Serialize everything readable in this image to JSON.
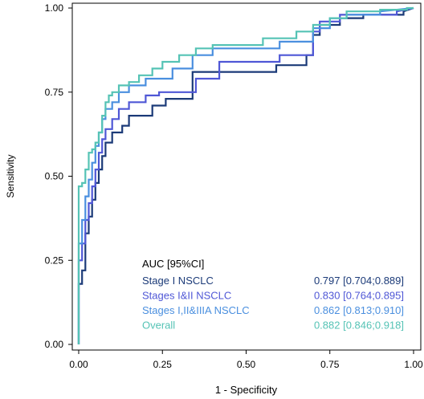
{
  "chart_data": {
    "type": "line",
    "title": "",
    "xlabel": "1 - Specificity",
    "ylabel": "Sensitivity",
    "xlim": [
      0,
      1
    ],
    "ylim": [
      0,
      1
    ],
    "xticks": [
      "0.00",
      "0.25",
      "0.50",
      "0.75",
      "1.00"
    ],
    "yticks": [
      "0.00",
      "0.25",
      "0.50",
      "0.75",
      "1.00"
    ],
    "grid": false,
    "legend_title": "AUC [95%CI]",
    "legend_position": "bottom-right",
    "series": [
      {
        "name": "Stage I NSCLC",
        "auc": "0.797 [0.704;0.889]",
        "color": "#1b3a78",
        "points": [
          [
            0,
            0
          ],
          [
            0,
            0.18
          ],
          [
            0.01,
            0.18
          ],
          [
            0.01,
            0.22
          ],
          [
            0.02,
            0.22
          ],
          [
            0.02,
            0.33
          ],
          [
            0.03,
            0.33
          ],
          [
            0.03,
            0.38
          ],
          [
            0.04,
            0.38
          ],
          [
            0.04,
            0.43
          ],
          [
            0.05,
            0.43
          ],
          [
            0.05,
            0.48
          ],
          [
            0.06,
            0.48
          ],
          [
            0.06,
            0.52
          ],
          [
            0.07,
            0.52
          ],
          [
            0.07,
            0.56
          ],
          [
            0.08,
            0.56
          ],
          [
            0.08,
            0.6
          ],
          [
            0.1,
            0.6
          ],
          [
            0.1,
            0.63
          ],
          [
            0.13,
            0.63
          ],
          [
            0.13,
            0.65
          ],
          [
            0.15,
            0.65
          ],
          [
            0.15,
            0.68
          ],
          [
            0.22,
            0.68
          ],
          [
            0.22,
            0.71
          ],
          [
            0.26,
            0.71
          ],
          [
            0.26,
            0.73
          ],
          [
            0.34,
            0.73
          ],
          [
            0.34,
            0.81
          ],
          [
            0.59,
            0.81
          ],
          [
            0.59,
            0.83
          ],
          [
            0.68,
            0.83
          ],
          [
            0.68,
            0.86
          ],
          [
            0.7,
            0.86
          ],
          [
            0.7,
            0.92
          ],
          [
            0.72,
            0.92
          ],
          [
            0.72,
            0.95
          ],
          [
            0.78,
            0.95
          ],
          [
            0.78,
            0.97
          ],
          [
            0.85,
            0.97
          ],
          [
            0.85,
            0.98
          ],
          [
            0.97,
            0.98
          ],
          [
            0.97,
            0.99
          ],
          [
            1,
            1
          ]
        ]
      },
      {
        "name": "Stages I&II NSCLC",
        "auc": "0.830 [0.764;0.895]",
        "color": "#4f57d6",
        "points": [
          [
            0,
            0
          ],
          [
            0,
            0.25
          ],
          [
            0.01,
            0.25
          ],
          [
            0.01,
            0.3
          ],
          [
            0.02,
            0.3
          ],
          [
            0.02,
            0.37
          ],
          [
            0.03,
            0.37
          ],
          [
            0.03,
            0.42
          ],
          [
            0.04,
            0.42
          ],
          [
            0.04,
            0.47
          ],
          [
            0.05,
            0.47
          ],
          [
            0.05,
            0.52
          ],
          [
            0.06,
            0.52
          ],
          [
            0.06,
            0.57
          ],
          [
            0.07,
            0.57
          ],
          [
            0.07,
            0.61
          ],
          [
            0.08,
            0.61
          ],
          [
            0.08,
            0.64
          ],
          [
            0.1,
            0.64
          ],
          [
            0.1,
            0.67
          ],
          [
            0.12,
            0.67
          ],
          [
            0.12,
            0.7
          ],
          [
            0.15,
            0.7
          ],
          [
            0.15,
            0.72
          ],
          [
            0.2,
            0.72
          ],
          [
            0.2,
            0.74
          ],
          [
            0.24,
            0.74
          ],
          [
            0.24,
            0.75
          ],
          [
            0.35,
            0.75
          ],
          [
            0.35,
            0.79
          ],
          [
            0.42,
            0.79
          ],
          [
            0.42,
            0.84
          ],
          [
            0.6,
            0.84
          ],
          [
            0.6,
            0.86
          ],
          [
            0.7,
            0.86
          ],
          [
            0.7,
            0.93
          ],
          [
            0.72,
            0.93
          ],
          [
            0.72,
            0.96
          ],
          [
            0.78,
            0.96
          ],
          [
            0.78,
            0.98
          ],
          [
            0.95,
            0.98
          ],
          [
            0.95,
            0.99
          ],
          [
            1,
            1
          ]
        ]
      },
      {
        "name": "Stages I,II&IIIA NSCLC",
        "auc": "0.862 [0.813;0.910]",
        "color": "#4a8fdf",
        "points": [
          [
            0,
            0
          ],
          [
            0,
            0.3
          ],
          [
            0.01,
            0.3
          ],
          [
            0.01,
            0.37
          ],
          [
            0.02,
            0.37
          ],
          [
            0.02,
            0.44
          ],
          [
            0.03,
            0.44
          ],
          [
            0.03,
            0.49
          ],
          [
            0.04,
            0.49
          ],
          [
            0.04,
            0.54
          ],
          [
            0.05,
            0.54
          ],
          [
            0.05,
            0.59
          ],
          [
            0.06,
            0.59
          ],
          [
            0.06,
            0.63
          ],
          [
            0.07,
            0.63
          ],
          [
            0.07,
            0.67
          ],
          [
            0.08,
            0.67
          ],
          [
            0.08,
            0.7
          ],
          [
            0.1,
            0.7
          ],
          [
            0.1,
            0.72
          ],
          [
            0.12,
            0.72
          ],
          [
            0.12,
            0.75
          ],
          [
            0.15,
            0.75
          ],
          [
            0.15,
            0.77
          ],
          [
            0.2,
            0.77
          ],
          [
            0.2,
            0.79
          ],
          [
            0.28,
            0.79
          ],
          [
            0.28,
            0.82
          ],
          [
            0.34,
            0.82
          ],
          [
            0.34,
            0.86
          ],
          [
            0.4,
            0.86
          ],
          [
            0.4,
            0.88
          ],
          [
            0.6,
            0.88
          ],
          [
            0.6,
            0.9
          ],
          [
            0.7,
            0.9
          ],
          [
            0.7,
            0.94
          ],
          [
            0.75,
            0.94
          ],
          [
            0.75,
            0.97
          ],
          [
            0.8,
            0.97
          ],
          [
            0.8,
            0.98
          ],
          [
            0.9,
            0.98
          ],
          [
            0.9,
            0.99
          ],
          [
            1,
            1
          ]
        ]
      },
      {
        "name": "Overall",
        "auc": "0.882 [0.846;0.918]",
        "color": "#55c3b5",
        "points": [
          [
            0,
            0
          ],
          [
            0,
            0.47
          ],
          [
            0.01,
            0.47
          ],
          [
            0.01,
            0.48
          ],
          [
            0.02,
            0.48
          ],
          [
            0.02,
            0.52
          ],
          [
            0.03,
            0.52
          ],
          [
            0.03,
            0.57
          ],
          [
            0.04,
            0.57
          ],
          [
            0.04,
            0.58
          ],
          [
            0.05,
            0.58
          ],
          [
            0.05,
            0.6
          ],
          [
            0.06,
            0.6
          ],
          [
            0.06,
            0.63
          ],
          [
            0.07,
            0.63
          ],
          [
            0.07,
            0.68
          ],
          [
            0.08,
            0.68
          ],
          [
            0.08,
            0.72
          ],
          [
            0.09,
            0.72
          ],
          [
            0.09,
            0.74
          ],
          [
            0.1,
            0.74
          ],
          [
            0.1,
            0.75
          ],
          [
            0.12,
            0.75
          ],
          [
            0.12,
            0.77
          ],
          [
            0.15,
            0.77
          ],
          [
            0.15,
            0.78
          ],
          [
            0.18,
            0.78
          ],
          [
            0.18,
            0.8
          ],
          [
            0.22,
            0.8
          ],
          [
            0.22,
            0.82
          ],
          [
            0.25,
            0.82
          ],
          [
            0.25,
            0.84
          ],
          [
            0.3,
            0.84
          ],
          [
            0.3,
            0.86
          ],
          [
            0.35,
            0.86
          ],
          [
            0.35,
            0.88
          ],
          [
            0.4,
            0.88
          ],
          [
            0.4,
            0.89
          ],
          [
            0.55,
            0.89
          ],
          [
            0.55,
            0.91
          ],
          [
            0.65,
            0.91
          ],
          [
            0.65,
            0.93
          ],
          [
            0.7,
            0.93
          ],
          [
            0.7,
            0.95
          ],
          [
            0.75,
            0.95
          ],
          [
            0.75,
            0.97
          ],
          [
            0.8,
            0.97
          ],
          [
            0.8,
            0.99
          ],
          [
            0.9,
            0.99
          ],
          [
            0.9,
            0.995
          ],
          [
            0.98,
            0.995
          ],
          [
            0.98,
            1
          ],
          [
            1,
            1
          ]
        ]
      }
    ]
  }
}
